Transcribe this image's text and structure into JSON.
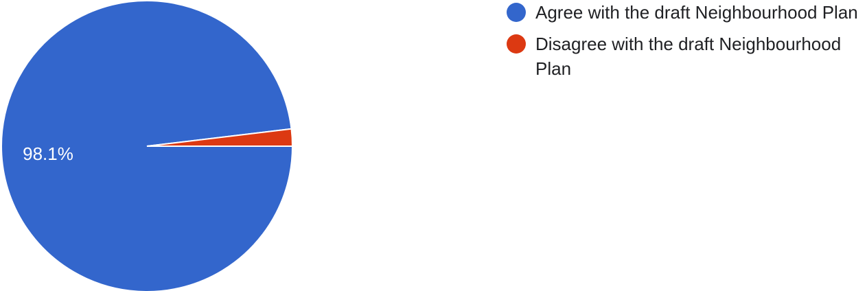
{
  "chart_data": {
    "type": "pie",
    "slices": [
      {
        "label": "Agree with the draft Neighbourhood Plan",
        "value": 98.1,
        "color": "#3366cc",
        "display_label": "98.1%"
      },
      {
        "label": "Disagree with the draft Neighbourhood Plan",
        "value": 1.9,
        "color": "#dc3912",
        "display_label": ""
      }
    ],
    "legend_position": "right"
  }
}
